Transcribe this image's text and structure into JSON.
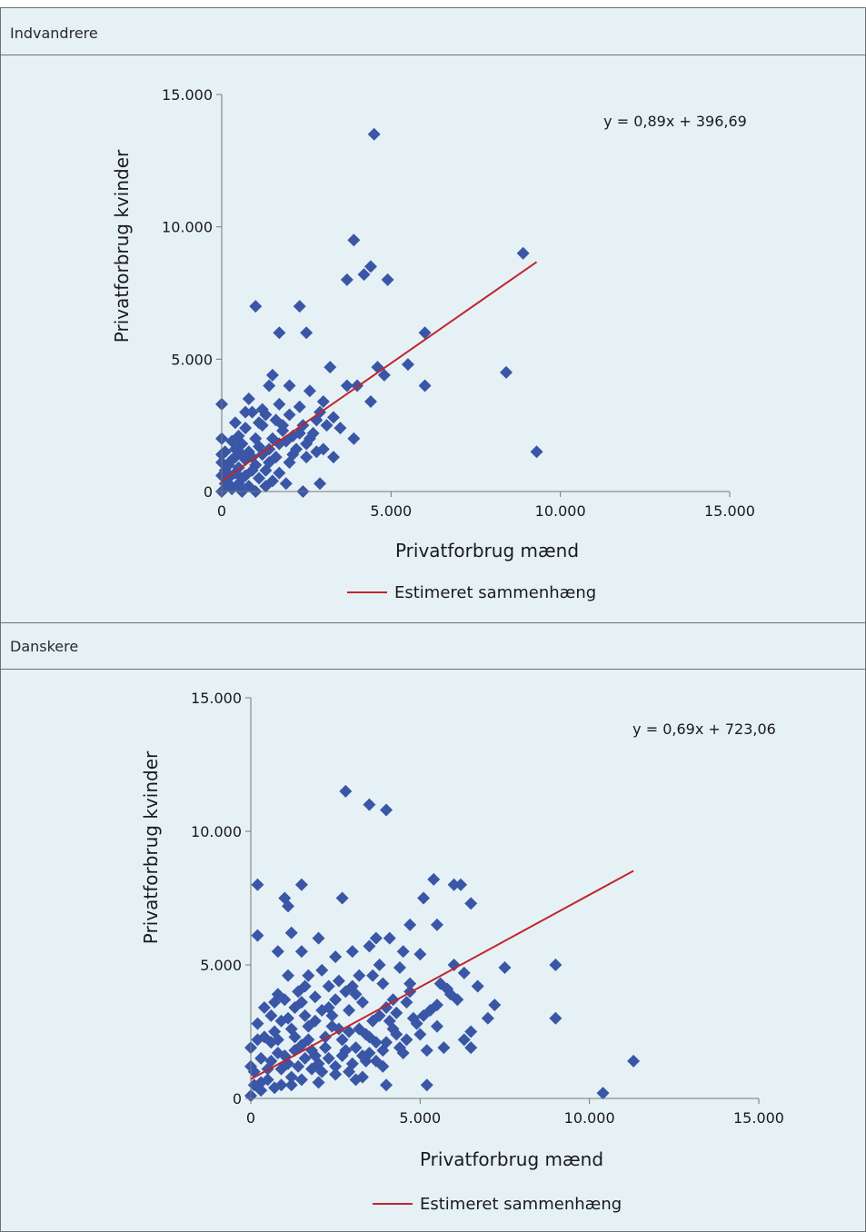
{
  "panels": [
    {
      "title": "Indvandrere"
    },
    {
      "title": "Danskere"
    }
  ],
  "colors": {
    "marker": "#3a56a6",
    "trend": "#c0262d",
    "axis": "#777777",
    "panel_bg": "#e6f1f5"
  },
  "chart_data": [
    {
      "type": "scatter",
      "title": "Indvandrere",
      "xlabel": "Privatforbrug mænd",
      "ylabel": "Privatforbrug kvinder",
      "xlim": [
        0,
        15000
      ],
      "ylim": [
        0,
        15000
      ],
      "x_ticks": [
        "0",
        "5.000",
        "10.000",
        "15.000"
      ],
      "y_ticks": [
        "0",
        "5.000",
        "10.000",
        "15.000"
      ],
      "grid": false,
      "legend_position": "bottom",
      "equation": "y = 0,89x + 396,69",
      "trendline": {
        "name": "Estimeret sammenhæng",
        "slope": 0.89,
        "intercept": 396.69,
        "x_range": [
          0,
          9300
        ]
      },
      "points": [
        [
          4500,
          13500
        ],
        [
          3900,
          9500
        ],
        [
          8900,
          9000
        ],
        [
          4400,
          8500
        ],
        [
          3700,
          8000
        ],
        [
          4900,
          8000
        ],
        [
          4200,
          8200
        ],
        [
          1000,
          7000
        ],
        [
          2300,
          7000
        ],
        [
          1700,
          6000
        ],
        [
          2500,
          6000
        ],
        [
          6000,
          6000
        ],
        [
          3200,
          4700
        ],
        [
          5500,
          4800
        ],
        [
          4600,
          4700
        ],
        [
          4800,
          4400
        ],
        [
          6000,
          4000
        ],
        [
          8400,
          4500
        ],
        [
          9300,
          1500
        ],
        [
          3700,
          4000
        ],
        [
          4000,
          4000
        ],
        [
          4400,
          3400
        ],
        [
          1500,
          4400
        ],
        [
          1400,
          4000
        ],
        [
          2000,
          4000
        ],
        [
          2600,
          3800
        ],
        [
          0,
          3300
        ],
        [
          800,
          3500
        ],
        [
          900,
          3000
        ],
        [
          700,
          3000
        ],
        [
          1200,
          3100
        ],
        [
          1700,
          3300
        ],
        [
          2300,
          3200
        ],
        [
          2900,
          3000
        ],
        [
          2000,
          2900
        ],
        [
          1600,
          2700
        ],
        [
          1200,
          2500
        ],
        [
          1800,
          2500
        ],
        [
          2400,
          2500
        ],
        [
          3100,
          2500
        ],
        [
          3500,
          2400
        ],
        [
          2700,
          2200
        ],
        [
          2100,
          2100
        ],
        [
          1500,
          2000
        ],
        [
          1000,
          2000
        ],
        [
          500,
          2100
        ],
        [
          0,
          2000
        ],
        [
          300,
          1900
        ],
        [
          600,
          1800
        ],
        [
          1100,
          1700
        ],
        [
          1700,
          1800
        ],
        [
          2200,
          1600
        ],
        [
          2800,
          1500
        ],
        [
          3300,
          1300
        ],
        [
          3900,
          2000
        ],
        [
          2500,
          1300
        ],
        [
          2000,
          1100
        ],
        [
          1400,
          1100
        ],
        [
          1000,
          1000
        ],
        [
          700,
          1200
        ],
        [
          400,
          1300
        ],
        [
          200,
          1000
        ],
        [
          0,
          1100
        ],
        [
          100,
          800
        ],
        [
          400,
          700
        ],
        [
          700,
          600
        ],
        [
          1100,
          500
        ],
        [
          1500,
          400
        ],
        [
          1900,
          300
        ],
        [
          2400,
          0
        ],
        [
          2900,
          300
        ],
        [
          1300,
          200
        ],
        [
          1000,
          0
        ],
        [
          600,
          0
        ],
        [
          300,
          100
        ],
        [
          100,
          300
        ],
        [
          0,
          0
        ],
        [
          200,
          500
        ],
        [
          500,
          300
        ],
        [
          800,
          200
        ],
        [
          0,
          600
        ],
        [
          100,
          1500
        ],
        [
          400,
          1600
        ],
        [
          800,
          1500
        ],
        [
          1200,
          1400
        ],
        [
          1600,
          1300
        ],
        [
          2100,
          1400
        ],
        [
          2500,
          1800
        ],
        [
          3000,
          1600
        ],
        [
          500,
          900
        ],
        [
          900,
          800
        ],
        [
          1300,
          800
        ],
        [
          1700,
          700
        ],
        [
          0,
          1400
        ],
        [
          300,
          1200
        ],
        [
          600,
          1400
        ],
        [
          900,
          1300
        ],
        [
          1400,
          1600
        ],
        [
          1900,
          1900
        ],
        [
          2300,
          2200
        ],
        [
          2600,
          2000
        ],
        [
          3300,
          2800
        ],
        [
          1100,
          2600
        ],
        [
          700,
          2400
        ],
        [
          400,
          2600
        ],
        [
          1300,
          2900
        ],
        [
          200,
          300
        ],
        [
          600,
          500
        ],
        [
          1800,
          2300
        ],
        [
          2800,
          2700
        ],
        [
          3000,
          3400
        ]
      ]
    },
    {
      "type": "scatter",
      "title": "Danskere",
      "xlabel": "Privatforbrug mænd",
      "ylabel": "Privatforbrug kvinder",
      "xlim": [
        0,
        15000
      ],
      "ylim": [
        0,
        15000
      ],
      "x_ticks": [
        "0",
        "5.000",
        "10.000",
        "15.000"
      ],
      "y_ticks": [
        "0",
        "5.000",
        "10.000",
        "15.000"
      ],
      "grid": false,
      "legend_position": "bottom",
      "equation": "y = 0,69x + 723,06",
      "trendline": {
        "name": "Estimeret sammenhæng",
        "slope": 0.69,
        "intercept": 723.06,
        "x_range": [
          0,
          11300
        ]
      },
      "points": [
        [
          2800,
          11500
        ],
        [
          3500,
          11000
        ],
        [
          4000,
          10800
        ],
        [
          200,
          8000
        ],
        [
          1500,
          8000
        ],
        [
          1000,
          7500
        ],
        [
          1100,
          7200
        ],
        [
          2700,
          7500
        ],
        [
          5400,
          8200
        ],
        [
          6000,
          8000
        ],
        [
          6200,
          8000
        ],
        [
          5100,
          7500
        ],
        [
          6500,
          7300
        ],
        [
          5500,
          6500
        ],
        [
          4700,
          6500
        ],
        [
          4100,
          6000
        ],
        [
          3700,
          6000
        ],
        [
          3500,
          5700
        ],
        [
          2000,
          6000
        ],
        [
          1200,
          6200
        ],
        [
          200,
          6100
        ],
        [
          800,
          5500
        ],
        [
          1500,
          5500
        ],
        [
          2500,
          5300
        ],
        [
          3000,
          5500
        ],
        [
          4500,
          5500
        ],
        [
          5000,
          5400
        ],
        [
          6000,
          5000
        ],
        [
          6300,
          4700
        ],
        [
          7500,
          4900
        ],
        [
          9000,
          5000
        ],
        [
          9000,
          3000
        ],
        [
          7000,
          3000
        ],
        [
          6500,
          2500
        ],
        [
          6300,
          2200
        ],
        [
          5700,
          1900
        ],
        [
          4500,
          1700
        ],
        [
          5200,
          500
        ],
        [
          4000,
          500
        ],
        [
          10400,
          200
        ],
        [
          11300,
          1400
        ],
        [
          6500,
          1900
        ],
        [
          5800,
          4100
        ],
        [
          6100,
          3700
        ],
        [
          5500,
          2700
        ],
        [
          4800,
          3000
        ],
        [
          4300,
          2400
        ],
        [
          3900,
          1200
        ],
        [
          3300,
          800
        ],
        [
          2500,
          900
        ],
        [
          1500,
          700
        ],
        [
          900,
          500
        ],
        [
          300,
          300
        ],
        [
          0,
          100
        ],
        [
          100,
          1000
        ],
        [
          0,
          1900
        ],
        [
          200,
          2800
        ],
        [
          400,
          3400
        ],
        [
          800,
          3900
        ],
        [
          1100,
          4600
        ],
        [
          1600,
          4200
        ],
        [
          2100,
          4800
        ],
        [
          2600,
          4400
        ],
        [
          3100,
          3900
        ],
        [
          3600,
          4600
        ],
        [
          4200,
          3700
        ],
        [
          4700,
          4300
        ],
        [
          5300,
          3300
        ],
        [
          5900,
          3900
        ],
        [
          600,
          2100
        ],
        [
          1000,
          1600
        ],
        [
          1400,
          1200
        ],
        [
          1800,
          1800
        ],
        [
          2200,
          2300
        ],
        [
          2700,
          1600
        ],
        [
          3200,
          2600
        ],
        [
          3700,
          2100
        ],
        [
          4100,
          2900
        ],
        [
          500,
          1100
        ],
        [
          900,
          2900
        ],
        [
          1300,
          3400
        ],
        [
          1700,
          2700
        ],
        [
          2000,
          1300
        ],
        [
          2400,
          3100
        ],
        [
          2900,
          3300
        ],
        [
          3400,
          2400
        ],
        [
          3800,
          3100
        ],
        [
          4400,
          1900
        ],
        [
          5000,
          2400
        ],
        [
          700,
          400
        ],
        [
          1200,
          800
        ],
        [
          1600,
          1500
        ],
        [
          2100,
          1000
        ],
        [
          2600,
          2600
        ],
        [
          3000,
          1300
        ],
        [
          3500,
          1700
        ],
        [
          300,
          1500
        ],
        [
          700,
          2500
        ],
        [
          1100,
          3000
        ],
        [
          1500,
          3600
        ],
        [
          1900,
          3800
        ],
        [
          2300,
          3400
        ],
        [
          2800,
          4000
        ],
        [
          3300,
          3600
        ],
        [
          4000,
          3400
        ],
        [
          4600,
          3600
        ],
        [
          400,
          2300
        ],
        [
          800,
          1700
        ],
        [
          1300,
          2300
        ],
        [
          1700,
          2200
        ],
        [
          2200,
          1900
        ],
        [
          2700,
          2200
        ],
        [
          3100,
          1900
        ],
        [
          3600,
          2900
        ],
        [
          4200,
          2600
        ],
        [
          100,
          500
        ],
        [
          500,
          700
        ],
        [
          900,
          1100
        ],
        [
          1300,
          1800
        ],
        [
          1800,
          1100
        ],
        [
          2300,
          1500
        ],
        [
          2900,
          1000
        ],
        [
          3400,
          1400
        ],
        [
          3900,
          1800
        ],
        [
          4300,
          3200
        ],
        [
          4900,
          2800
        ],
        [
          5500,
          3500
        ],
        [
          5200,
          1800
        ],
        [
          1000,
          3700
        ],
        [
          1400,
          4000
        ],
        [
          2500,
          3700
        ],
        [
          3200,
          4600
        ],
        [
          4400,
          4900
        ],
        [
          3800,
          5000
        ],
        [
          3000,
          4200
        ],
        [
          600,
          3100
        ],
        [
          200,
          2200
        ],
        [
          0,
          1200
        ],
        [
          300,
          600
        ],
        [
          1900,
          2900
        ],
        [
          2400,
          2700
        ],
        [
          2100,
          3300
        ],
        [
          1600,
          3100
        ],
        [
          1200,
          2600
        ],
        [
          800,
          2200
        ],
        [
          2900,
          2500
        ],
        [
          3500,
          2300
        ],
        [
          4000,
          2100
        ],
        [
          3700,
          1400
        ],
        [
          3300,
          1600
        ],
        [
          2800,
          1800
        ],
        [
          4600,
          2200
        ],
        [
          5100,
          3100
        ],
        [
          1100,
          1300
        ],
        [
          1500,
          2000
        ],
        [
          1900,
          1600
        ],
        [
          600,
          1400
        ],
        [
          1200,
          500
        ],
        [
          2000,
          600
        ],
        [
          2500,
          1200
        ],
        [
          3100,
          700
        ],
        [
          700,
          3600
        ],
        [
          1700,
          4600
        ],
        [
          2300,
          4200
        ],
        [
          3900,
          4300
        ],
        [
          4700,
          4000
        ],
        [
          5600,
          4300
        ],
        [
          6700,
          4200
        ],
        [
          7200,
          3500
        ]
      ]
    }
  ]
}
